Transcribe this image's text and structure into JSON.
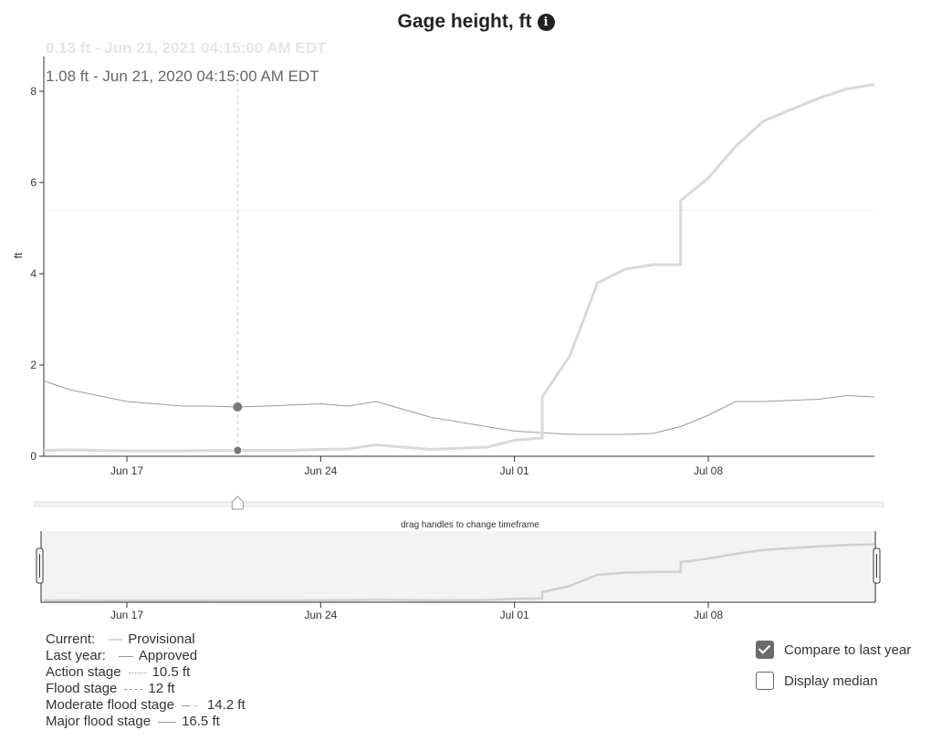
{
  "chart_data": {
    "type": "line",
    "title": "Gage height, ft",
    "ylabel": "ft",
    "ylim": [
      0,
      9
    ],
    "xlim": [
      "2021-06-14",
      "2021-07-14"
    ],
    "yticks": [
      "0",
      "2",
      "4",
      "6",
      "8"
    ],
    "xticks": [
      "Jun 17",
      "Jun 24",
      "Jul 01",
      "Jul 08"
    ],
    "tooltip": {
      "current": "0.13 ft - Jun 21, 2021 04:15:00 AM EDT",
      "last_year": "1.08 ft - Jun 21, 2020 04:15:00 AM EDT",
      "date": "2021-06-21"
    },
    "series": [
      {
        "name": "Provisional",
        "x": [
          "2021-06-14",
          "2021-06-15",
          "2021-06-17",
          "2021-06-19",
          "2021-06-21",
          "2021-06-23",
          "2021-06-24",
          "2021-06-25",
          "2021-06-26",
          "2021-06-28",
          "2021-06-30",
          "2021-07-01",
          "2021-07-02",
          "2021-07-02",
          "2021-07-03",
          "2021-07-04",
          "2021-07-05",
          "2021-07-06",
          "2021-07-07",
          "2021-07-07",
          "2021-07-08",
          "2021-07-09",
          "2021-07-10",
          "2021-07-11",
          "2021-07-12",
          "2021-07-13",
          "2021-07-14"
        ],
        "y": [
          0.13,
          0.14,
          0.12,
          0.12,
          0.13,
          0.13,
          0.15,
          0.16,
          0.25,
          0.15,
          0.2,
          0.35,
          0.4,
          1.3,
          2.2,
          3.8,
          4.1,
          4.2,
          4.2,
          5.6,
          6.1,
          6.8,
          7.35,
          7.6,
          7.85,
          8.05,
          8.15
        ]
      },
      {
        "name": "Last year",
        "x": [
          "2021-06-14",
          "2021-06-15",
          "2021-06-17",
          "2021-06-19",
          "2021-06-20",
          "2021-06-21",
          "2021-06-22",
          "2021-06-24",
          "2021-06-25",
          "2021-06-26",
          "2021-06-28",
          "2021-06-30",
          "2021-07-01",
          "2021-07-03",
          "2021-07-05",
          "2021-07-06",
          "2021-07-07",
          "2021-07-08",
          "2021-07-09",
          "2021-07-10",
          "2021-07-12",
          "2021-07-13",
          "2021-07-14"
        ],
        "y": [
          1.65,
          1.45,
          1.2,
          1.1,
          1.1,
          1.08,
          1.1,
          1.15,
          1.1,
          1.2,
          0.85,
          0.65,
          0.55,
          0.48,
          0.48,
          0.5,
          0.65,
          0.9,
          1.2,
          1.2,
          1.25,
          1.33,
          1.3
        ]
      }
    ]
  },
  "legend": {
    "current_label": "Current:",
    "current_value": "Provisional",
    "last_year_label": "Last year:",
    "last_year_value": "Approved",
    "action_label": "Action stage",
    "action_value": "10.5 ft",
    "flood_label": "Flood stage",
    "flood_value": "12 ft",
    "moderate_label": "Moderate flood stage",
    "moderate_value": "14.2 ft",
    "major_label": "Major flood stage",
    "major_value": "16.5 ft"
  },
  "brush": {
    "hint": "drag handles to change timeframe"
  },
  "controls": {
    "compare_label": "Compare to last year",
    "compare_checked": true,
    "median_label": "Display median",
    "median_checked": false
  },
  "colors": {
    "current": "#d9d9d9",
    "last_year": "#999999",
    "axis": "#333333"
  }
}
